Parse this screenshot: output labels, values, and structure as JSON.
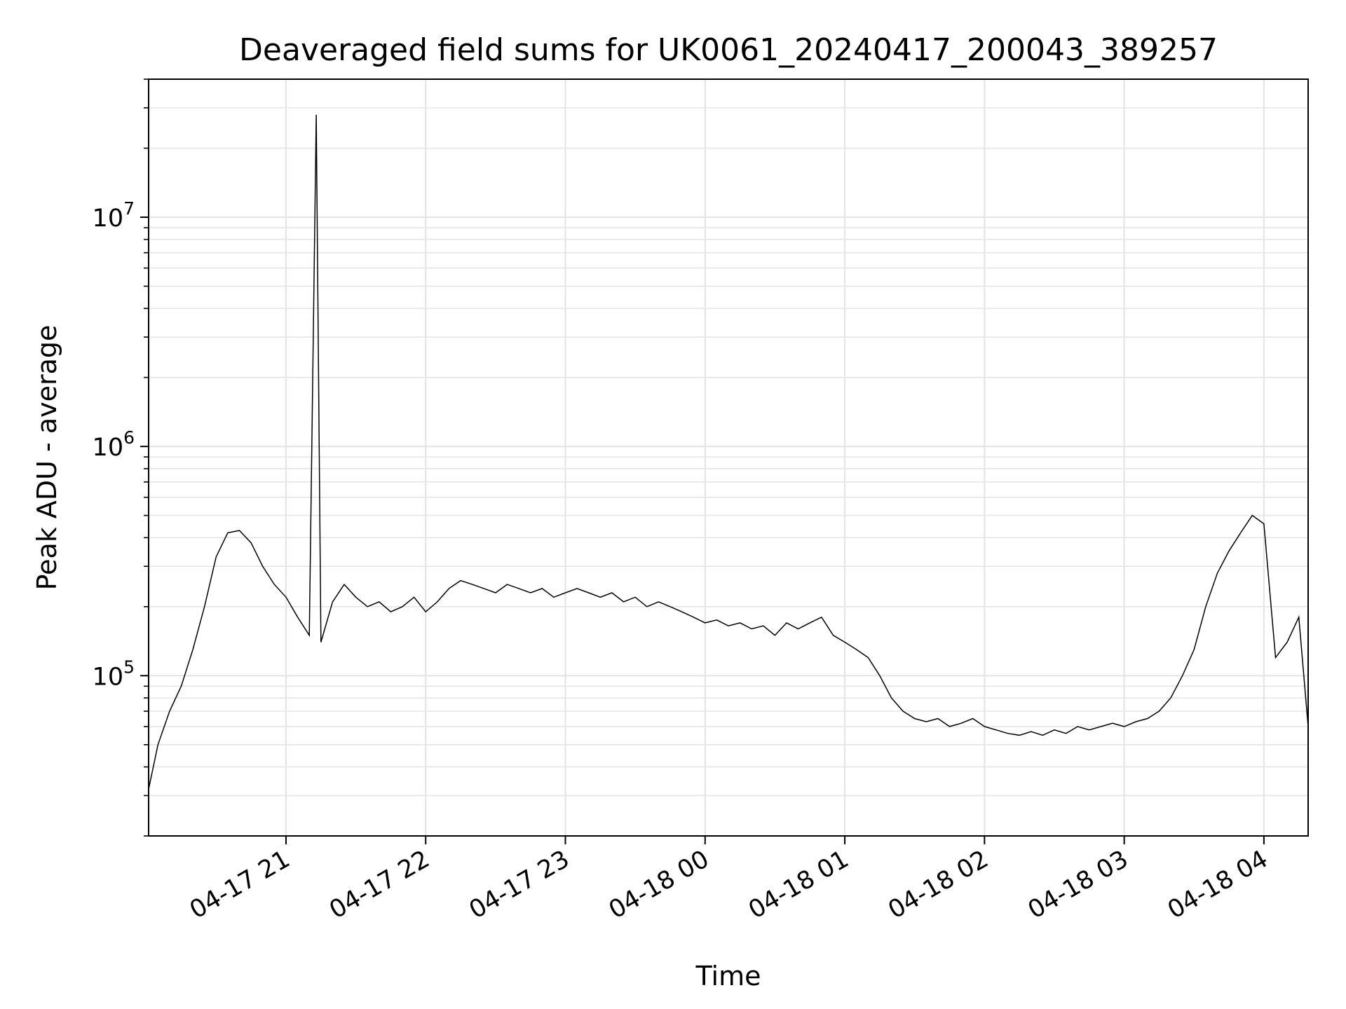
{
  "chart_data": {
    "type": "line",
    "title": "Deaveraged field sums for UK0061_20240417_200043_389257",
    "xlabel": "Time",
    "ylabel": "Peak ADU - average",
    "y_scale": "log",
    "ylim": [
      20000,
      40000000
    ],
    "xlim": [
      "2024-04-17 20:01",
      "2024-04-18 04:19"
    ],
    "grid": true,
    "line_color": "#000000",
    "grid_color": "#e5e5e5",
    "x_ticks": [
      {
        "value": "2024-04-17 21:00",
        "label": "04-17 21"
      },
      {
        "value": "2024-04-17 22:00",
        "label": "04-17 22"
      },
      {
        "value": "2024-04-17 23:00",
        "label": "04-17 23"
      },
      {
        "value": "2024-04-18 00:00",
        "label": "04-18 00"
      },
      {
        "value": "2024-04-18 01:00",
        "label": "04-18 01"
      },
      {
        "value": "2024-04-18 02:00",
        "label": "04-18 02"
      },
      {
        "value": "2024-04-18 03:00",
        "label": "04-18 03"
      },
      {
        "value": "2024-04-18 04:00",
        "label": "04-18 04"
      }
    ],
    "y_ticks": [
      {
        "value": 100000,
        "base": "10",
        "exp": "5"
      },
      {
        "value": 1000000,
        "base": "10",
        "exp": "6"
      },
      {
        "value": 10000000,
        "base": "10",
        "exp": "7"
      }
    ],
    "series": [
      {
        "x": [
          "2024-04-17 20:01",
          "2024-04-17 20:05",
          "2024-04-17 20:10",
          "2024-04-17 20:15",
          "2024-04-17 20:20",
          "2024-04-17 20:25",
          "2024-04-17 20:30",
          "2024-04-17 20:35",
          "2024-04-17 20:40",
          "2024-04-17 20:45",
          "2024-04-17 20:50",
          "2024-04-17 20:55",
          "2024-04-17 21:00",
          "2024-04-17 21:05",
          "2024-04-17 21:10",
          "2024-04-17 21:13",
          "2024-04-17 21:15",
          "2024-04-17 21:20",
          "2024-04-17 21:25",
          "2024-04-17 21:30",
          "2024-04-17 21:35",
          "2024-04-17 21:40",
          "2024-04-17 21:45",
          "2024-04-17 21:50",
          "2024-04-17 21:55",
          "2024-04-17 22:00",
          "2024-04-17 22:05",
          "2024-04-17 22:10",
          "2024-04-17 22:15",
          "2024-04-17 22:20",
          "2024-04-17 22:25",
          "2024-04-17 22:30",
          "2024-04-17 22:35",
          "2024-04-17 22:40",
          "2024-04-17 22:45",
          "2024-04-17 22:50",
          "2024-04-17 22:55",
          "2024-04-17 23:00",
          "2024-04-17 23:05",
          "2024-04-17 23:10",
          "2024-04-17 23:15",
          "2024-04-17 23:20",
          "2024-04-17 23:25",
          "2024-04-17 23:30",
          "2024-04-17 23:35",
          "2024-04-17 23:40",
          "2024-04-17 23:45",
          "2024-04-17 23:50",
          "2024-04-17 23:55",
          "2024-04-18 00:00",
          "2024-04-18 00:05",
          "2024-04-18 00:10",
          "2024-04-18 00:15",
          "2024-04-18 00:20",
          "2024-04-18 00:25",
          "2024-04-18 00:30",
          "2024-04-18 00:35",
          "2024-04-18 00:40",
          "2024-04-18 00:45",
          "2024-04-18 00:50",
          "2024-04-18 00:55",
          "2024-04-18 01:00",
          "2024-04-18 01:05",
          "2024-04-18 01:10",
          "2024-04-18 01:15",
          "2024-04-18 01:20",
          "2024-04-18 01:25",
          "2024-04-18 01:30",
          "2024-04-18 01:35",
          "2024-04-18 01:40",
          "2024-04-18 01:45",
          "2024-04-18 01:50",
          "2024-04-18 01:55",
          "2024-04-18 02:00",
          "2024-04-18 02:05",
          "2024-04-18 02:10",
          "2024-04-18 02:15",
          "2024-04-18 02:20",
          "2024-04-18 02:25",
          "2024-04-18 02:30",
          "2024-04-18 02:35",
          "2024-04-18 02:40",
          "2024-04-18 02:45",
          "2024-04-18 02:50",
          "2024-04-18 02:55",
          "2024-04-18 03:00",
          "2024-04-18 03:05",
          "2024-04-18 03:10",
          "2024-04-18 03:15",
          "2024-04-18 03:20",
          "2024-04-18 03:25",
          "2024-04-18 03:30",
          "2024-04-18 03:35",
          "2024-04-18 03:40",
          "2024-04-18 03:45",
          "2024-04-18 03:50",
          "2024-04-18 03:55",
          "2024-04-18 04:00",
          "2024-04-18 04:05",
          "2024-04-18 04:10",
          "2024-04-18 04:15",
          "2024-04-18 04:19"
        ],
        "y": [
          32000,
          50000,
          70000,
          90000,
          130000,
          200000,
          330000,
          420000,
          430000,
          380000,
          300000,
          250000,
          220000,
          180000,
          150000,
          28000000,
          140000,
          210000,
          250000,
          220000,
          200000,
          210000,
          190000,
          200000,
          220000,
          190000,
          210000,
          240000,
          260000,
          250000,
          240000,
          230000,
          250000,
          240000,
          230000,
          240000,
          220000,
          230000,
          240000,
          230000,
          220000,
          230000,
          210000,
          220000,
          200000,
          210000,
          200000,
          190000,
          180000,
          170000,
          175000,
          165000,
          170000,
          160000,
          165000,
          150000,
          170000,
          160000,
          170000,
          180000,
          150000,
          140000,
          130000,
          120000,
          100000,
          80000,
          70000,
          65000,
          63000,
          65000,
          60000,
          62000,
          65000,
          60000,
          58000,
          56000,
          55000,
          57000,
          55000,
          58000,
          56000,
          60000,
          58000,
          60000,
          62000,
          60000,
          63000,
          65000,
          70000,
          80000,
          100000,
          130000,
          200000,
          280000,
          350000,
          420000,
          500000,
          460000,
          120000,
          140000,
          180000,
          60000
        ]
      }
    ]
  }
}
